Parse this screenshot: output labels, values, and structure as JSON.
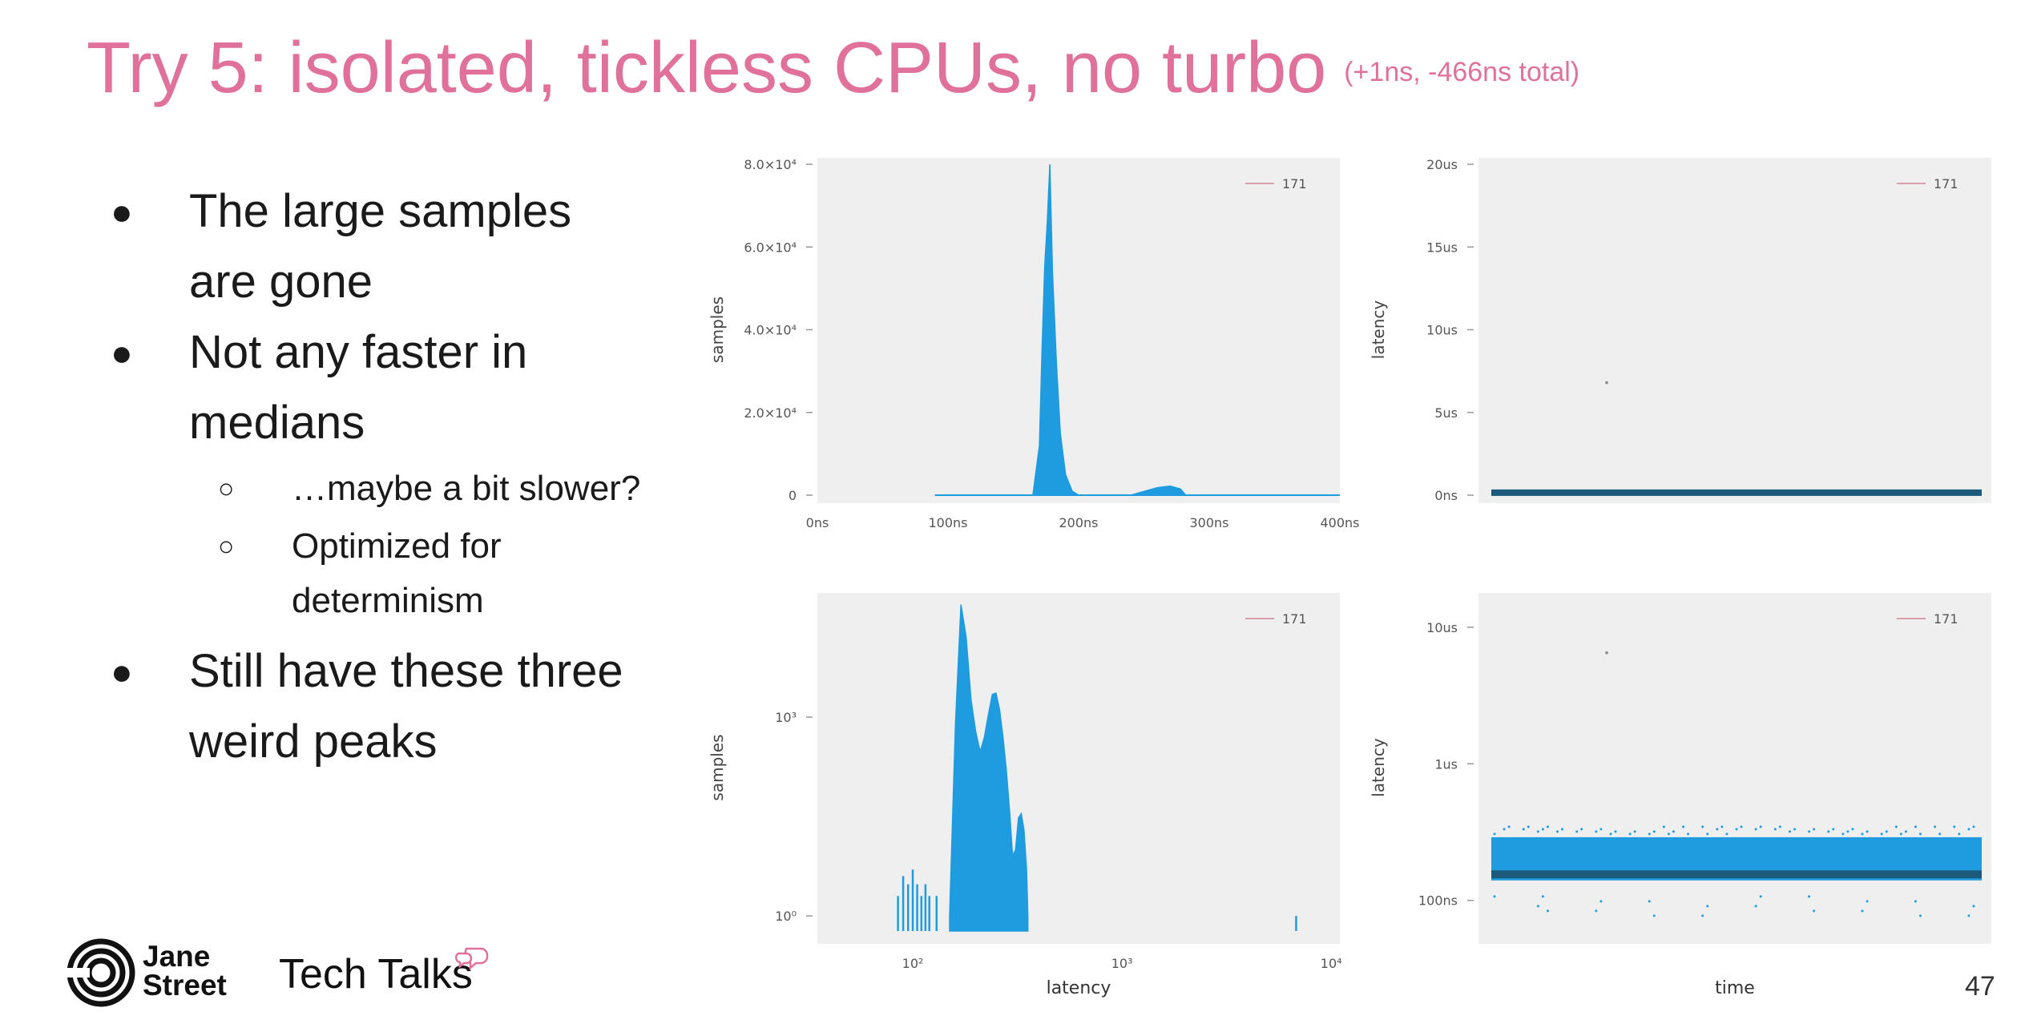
{
  "slide": {
    "title": "Try 5: isolated, tickless CPUs, no turbo",
    "subtitle": "(+1ns, -466ns total)",
    "bullets": [
      {
        "text": "The large samples",
        "cont": "are gone"
      },
      {
        "text": "Not any faster in",
        "cont": "medians"
      },
      {
        "text": "…maybe a bit slower?"
      },
      {
        "text": "Optimized for",
        "cont": "determinism"
      },
      {
        "text": "Still have these three",
        "cont": "weird peaks"
      }
    ],
    "bullet_glyph": "●",
    "sub_glyph": "○",
    "brand_line1": "Jane",
    "brand_line2": "Street",
    "brand_product": "Tech Talks",
    "page_number": "47",
    "colors": {
      "title": "#e0719a",
      "series": "#1f9be0",
      "dark": "#1b5a7a",
      "bg": "#efefef"
    },
    "icons": [
      "jane-street-logo-icon",
      "speech-bubble-icon"
    ]
  },
  "chart_data": [
    {
      "type": "area",
      "ylabel": "samples",
      "xlabel": "",
      "legend": "171",
      "legend_position": "top-right",
      "x_ticks": [
        "0ns",
        "100ns",
        "200ns",
        "300ns",
        "400ns"
      ],
      "x_tick_values": [
        0,
        100,
        200,
        300,
        400
      ],
      "y_ticks": [
        "0",
        "2.0×10⁴",
        "4.0×10⁴",
        "6.0×10⁴",
        "8.0×10⁴"
      ],
      "y_tick_values": [
        0,
        20000,
        40000,
        60000,
        80000
      ],
      "xlim": [
        0,
        400
      ],
      "ylim": [
        0,
        80000
      ],
      "x": [
        90,
        165,
        170,
        172,
        174,
        176,
        178,
        180,
        183,
        186,
        190,
        195,
        200,
        240,
        250,
        260,
        270,
        278,
        282,
        290,
        400
      ],
      "y": [
        0,
        0,
        12000,
        35000,
        55000,
        66000,
        80000,
        54000,
        32000,
        15000,
        5000,
        1000,
        0,
        0,
        900,
        1800,
        2200,
        1500,
        0,
        0,
        0
      ]
    },
    {
      "type": "scatter",
      "ylabel": "latency",
      "xlabel": "",
      "legend": "171",
      "legend_position": "top-right",
      "y_ticks": [
        "0ns",
        "5us",
        "10us",
        "15us",
        "20us"
      ],
      "y_tick_values": [
        0,
        5,
        10,
        15,
        20
      ],
      "ylim": [
        0,
        20
      ],
      "band": [
        0.1,
        0.2
      ],
      "outliers": [
        [
          0.25,
          6.8
        ]
      ]
    },
    {
      "type": "area",
      "ylabel": "samples",
      "xlabel": "latency",
      "legend": "171",
      "legend_position": "top-right",
      "log_x": true,
      "log_y": true,
      "x_ticks": [
        "10²",
        "10³",
        "10⁴"
      ],
      "x_tick_values": [
        100,
        1000,
        10000
      ],
      "y_ticks": [
        "10⁰",
        "10³"
      ],
      "y_tick_values": [
        1,
        1000
      ],
      "xlim": [
        35,
        11000
      ],
      "ylim": [
        0.5,
        60000
      ],
      "x": [
        150,
        160,
        170,
        180,
        190,
        200,
        210,
        220,
        230,
        240,
        250,
        260,
        270,
        280,
        290,
        300,
        310,
        320,
        330,
        340,
        350,
        355
      ],
      "y": [
        1,
        800,
        50000,
        16000,
        1800,
        600,
        300,
        500,
        1100,
        2200,
        2300,
        1300,
        500,
        160,
        40,
        8,
        10,
        30,
        35,
        20,
        5,
        1
      ],
      "spikes": [
        [
          85,
          2
        ],
        [
          90,
          4
        ],
        [
          95,
          3
        ],
        [
          100,
          5
        ],
        [
          105,
          3
        ],
        [
          110,
          2
        ],
        [
          115,
          3
        ],
        [
          120,
          2
        ],
        [
          130,
          2
        ],
        [
          6800,
          1
        ]
      ]
    },
    {
      "type": "scatter",
      "ylabel": "latency",
      "xlabel": "time",
      "legend": "171",
      "legend_position": "top-right",
      "log_y": true,
      "y_ticks": [
        "100ns",
        "1us",
        "10us"
      ],
      "y_tick_values": [
        100,
        1000,
        10000
      ],
      "ylim": [
        55,
        16000
      ],
      "band": [
        140,
        290
      ],
      "dense_line": 155,
      "outliers": [
        [
          0.25,
          6500
        ]
      ]
    }
  ]
}
